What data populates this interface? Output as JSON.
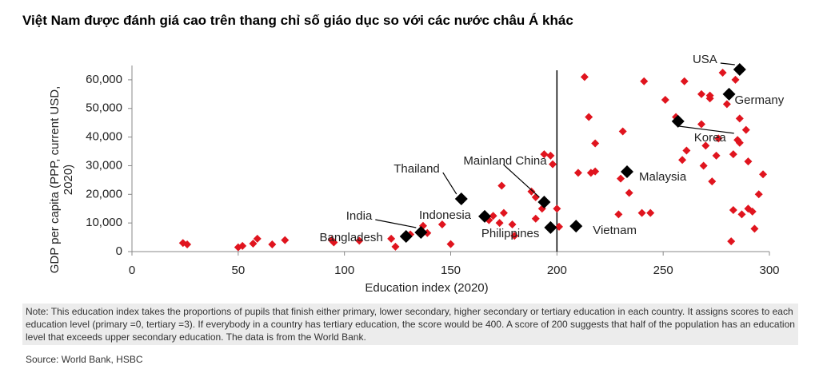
{
  "chart_data": {
    "type": "scatter",
    "title": "Việt Nam được đánh giá cao trên thang chỉ số giáo dục so với các nước châu Á khác",
    "x_label": "Education index (2020)",
    "y_label": "GDP per capita (PPP, current USD, 2020)",
    "note": "Note: This education index takes the proportions of pupils that finish either primary, lower secondary, higher secondary or tertiary education in each country. It assigns scores to each education level (primary =0, tertiary =3). If everybody in a country has tertiary education, the score would be 400. A score of 200 suggests that half of the population has an education level that exceeds upper secondary education. The data is from the World Bank.",
    "source": "Source: World Bank, HSBC",
    "xlim": [
      0,
      300
    ],
    "ylim": [
      0,
      65000
    ],
    "xticks": [
      0,
      50,
      100,
      150,
      200,
      250,
      300
    ],
    "yticks": [
      0,
      {
        "value": 10000,
        "label": "10,000"
      },
      {
        "value": 20000,
        "label": "20,000"
      },
      {
        "value": 30000,
        "label": "30,000"
      },
      {
        "value": 40000,
        "label": "40,000"
      },
      {
        "value": 50000,
        "label": "50,000"
      },
      {
        "value": 60000,
        "label": "60,000"
      }
    ],
    "grid": false,
    "reference_x": 200,
    "series": [
      {
        "color": "#e0141e",
        "x": [
          24,
          26,
          50,
          52,
          57,
          59,
          66,
          72,
          94,
          95,
          107,
          122,
          124,
          131,
          137,
          139,
          146,
          150,
          168,
          170,
          173,
          175,
          174,
          179,
          180,
          190,
          188,
          190,
          193,
          194,
          198,
          197,
          200,
          201,
          210,
          213,
          215,
          216,
          218,
          218,
          229,
          230,
          231,
          234,
          240,
          241,
          244,
          251,
          256,
          259,
          260,
          261,
          268,
          268,
          269,
          270,
          272,
          272,
          273,
          275,
          276,
          278,
          280,
          282,
          283,
          283,
          284,
          285,
          286,
          286,
          287,
          289,
          290,
          290,
          292,
          293,
          295,
          297
        ],
        "values": [
          3000,
          2500,
          1500,
          2000,
          2800,
          4500,
          2500,
          4000,
          4000,
          3200,
          3800,
          4500,
          1700,
          6000,
          9000,
          6500,
          9500,
          2600,
          11000,
          12500,
          10000,
          13500,
          23000,
          9500,
          5500,
          11500,
          21000,
          19000,
          15000,
          34000,
          30500,
          33500,
          15000,
          8700,
          27500,
          61000,
          47000,
          27500,
          37800,
          28000,
          13000,
          25500,
          42000,
          20500,
          13500,
          59500,
          13500,
          53000,
          47000,
          32000,
          59500,
          35300,
          55000,
          44500,
          30000,
          37000,
          53500,
          54500,
          24500,
          33500,
          39500,
          62500,
          51500,
          3600,
          14500,
          34000,
          60000,
          39000,
          46500,
          38000,
          13000,
          42500,
          31500,
          15000,
          14000,
          8000,
          20000,
          27000
        ]
      },
      {
        "color": "#000000",
        "x": [
          286,
          281,
          257,
          233,
          155,
          194,
          166,
          209,
          197,
          136,
          129
        ],
        "values": [
          63600,
          55000,
          45500,
          27900,
          18400,
          17300,
          12300,
          8900,
          8400,
          6700,
          5300
        ],
        "labels": [
          "USA",
          "Germany",
          "Korea",
          "Malaysia",
          "Thailand",
          "Mainland China",
          "Indonesia",
          "Vietnam",
          "Philippines",
          "India",
          "Bangladesh"
        ]
      }
    ]
  }
}
